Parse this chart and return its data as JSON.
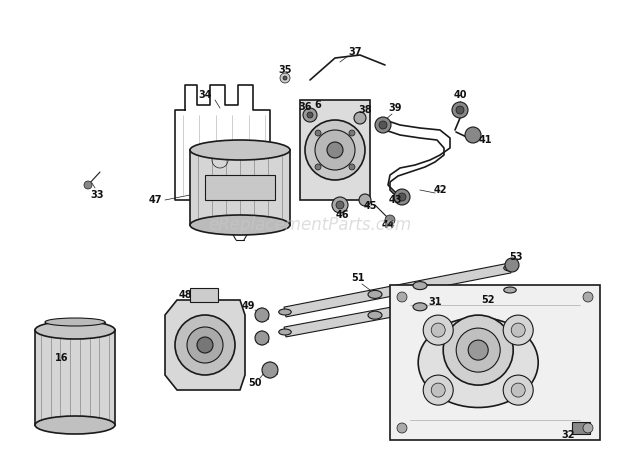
{
  "bg_color": "#ffffff",
  "line_color": "#1a1a1a",
  "label_color": "#111111",
  "watermark": "eReplacementParts.com",
  "watermark_color": "#c8c8c8",
  "fig_width": 6.2,
  "fig_height": 4.49,
  "dpi": 100
}
